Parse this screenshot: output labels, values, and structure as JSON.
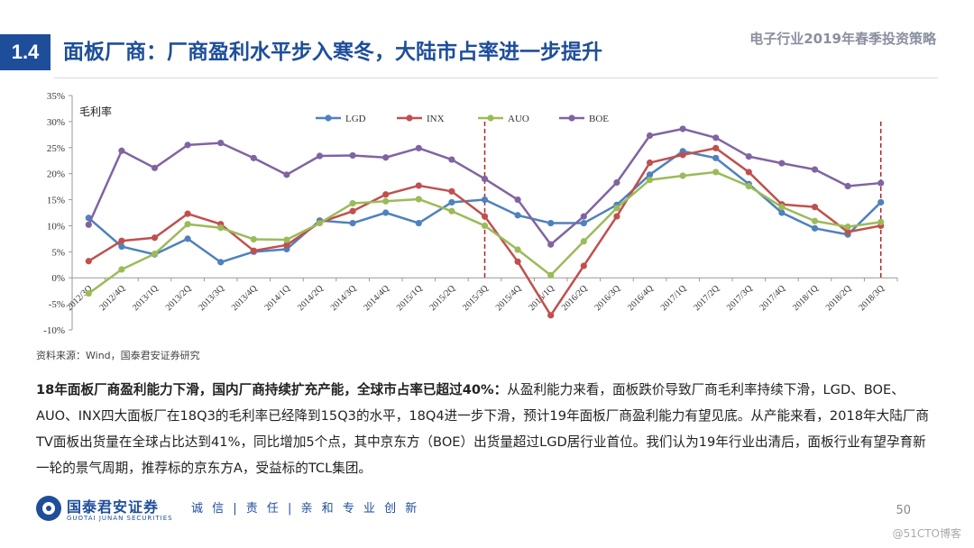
{
  "header": {
    "section_no": "1.4",
    "title": "面板厂商：厂商盈利水平步入寒冬，大陆市占率进一步提升",
    "report_name": "电子行业2019年春季投资策略"
  },
  "chart_data": {
    "type": "line",
    "ylabel": "毛利率",
    "ylim": [
      -10,
      35
    ],
    "yticks": [
      "35%",
      "30%",
      "25%",
      "20%",
      "15%",
      "10%",
      "5%",
      "0%",
      "-5%",
      "-10%"
    ],
    "categories": [
      "2012/3Q",
      "2012/4Q",
      "2013/1Q",
      "2013/2Q",
      "2013/3Q",
      "2013/4Q",
      "2014/1Q",
      "2014/2Q",
      "2014/3Q",
      "2014/4Q",
      "2015/1Q",
      "2015/2Q",
      "2015/3Q",
      "2015/4Q",
      "2016/1Q",
      "2016/2Q",
      "2016/3Q",
      "2016/4Q",
      "2017/1Q",
      "2017/2Q",
      "2017/3Q",
      "2017/4Q",
      "2018/1Q",
      "2018/2Q",
      "2018/3Q"
    ],
    "markers": [
      "2015/3Q",
      "2018/3Q"
    ],
    "series": [
      {
        "name": "LGD",
        "color": "#4f81bd",
        "values": [
          11.5,
          6.0,
          4.5,
          7.5,
          3.0,
          5.0,
          5.5,
          11.0,
          10.5,
          12.5,
          10.5,
          14.5,
          15.0,
          12.0,
          10.5,
          10.5,
          14.0,
          19.8,
          24.3,
          23.0,
          18.0,
          12.5,
          9.5,
          8.3,
          14.5
        ]
      },
      {
        "name": "INX",
        "color": "#c0504d",
        "values": [
          3.2,
          7.1,
          7.7,
          12.3,
          10.3,
          5.2,
          6.3,
          10.6,
          12.8,
          16.0,
          17.7,
          16.6,
          11.8,
          3.1,
          -7.2,
          2.3,
          11.8,
          22.1,
          23.6,
          24.9,
          20.3,
          14.1,
          13.6,
          8.8,
          10.0
        ]
      },
      {
        "name": "AUO",
        "color": "#9bbb59",
        "values": [
          -3.0,
          1.6,
          4.6,
          10.3,
          9.6,
          7.4,
          7.3,
          10.5,
          14.3,
          14.7,
          15.1,
          12.8,
          10.0,
          5.4,
          0.5,
          7.0,
          13.4,
          18.8,
          19.6,
          20.3,
          17.6,
          13.6,
          10.9,
          9.8,
          10.7
        ]
      },
      {
        "name": "BOE",
        "color": "#8064a2",
        "values": [
          10.2,
          24.4,
          21.1,
          25.5,
          25.9,
          23.0,
          19.8,
          23.4,
          23.5,
          23.1,
          24.9,
          22.7,
          19.0,
          15.0,
          6.4,
          11.8,
          18.3,
          27.3,
          28.6,
          26.9,
          23.3,
          22.0,
          20.8,
          17.6,
          18.2
        ]
      }
    ]
  },
  "source": "资料来源：Wind，国泰君安证券研究",
  "body": {
    "lead": "18年面板厂商盈利能力下滑，国内厂商持续扩充产能，全球市占率已超过40%：",
    "text": "从盈利能力来看，面板跌价导致厂商毛利率持续下滑，LGD、BOE、AUO、INX四大面板厂在18Q3的毛利率已经降到15Q3的水平，18Q4进一步下滑，预计19年面板厂商盈利能力有望见底。从产能来看，2018年大陆厂商TV面板出货量在全球占比达到41%，同比增加5个点，其中京东方（BOE）出货量超过LGD居行业首位。我们认为19年行业出清后，面板行业有望孕育新一轮的景气周期，推荐标的京东方A，受益标的TCL集团。"
  },
  "footer": {
    "brand": "国泰君安证券",
    "brand_en": "GUOTAI JUNAN SECURITIES",
    "motto": "诚 信 | 责 任 | 亲 和   专 业   创 新",
    "page": "50",
    "watermark": "@51CTO博客"
  }
}
